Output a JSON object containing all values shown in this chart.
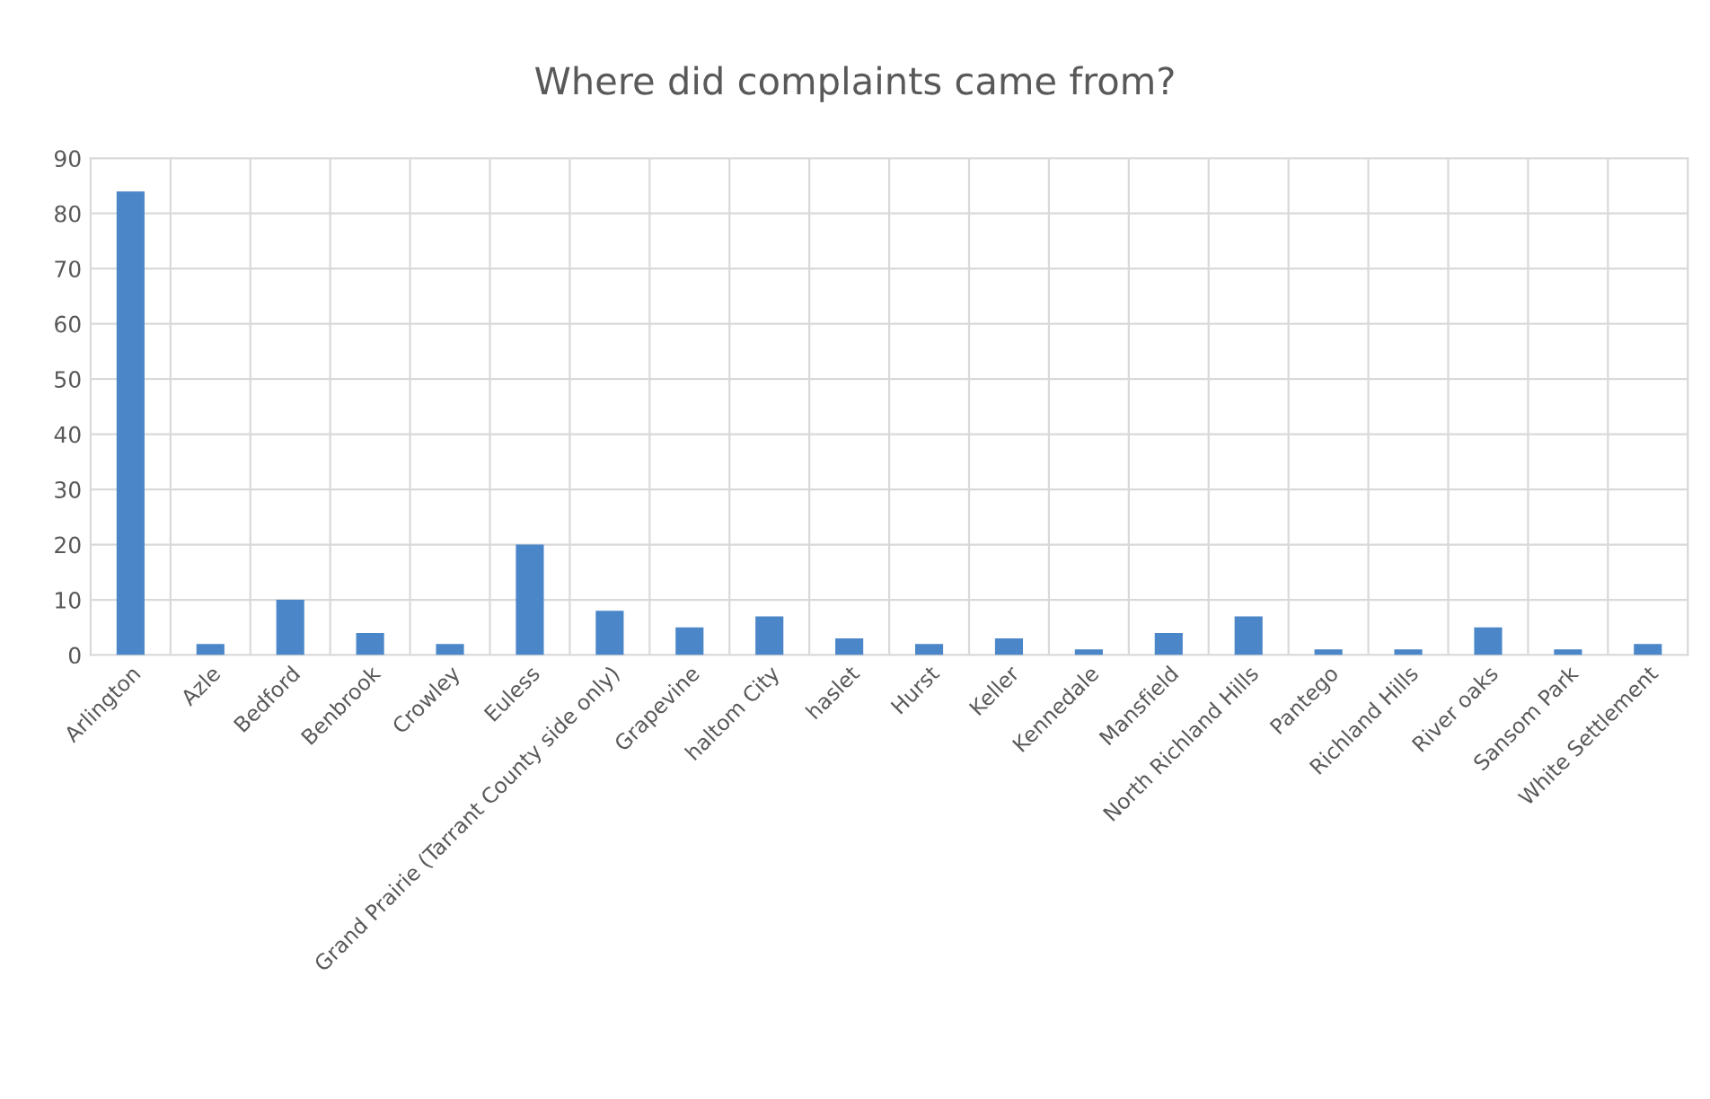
{
  "chart_data": {
    "type": "bar",
    "title": "Where did complaints came from?",
    "categories": [
      "Arlington",
      "Azle",
      "Bedford",
      "Benbrook",
      "Crowley",
      "Euless",
      "Grand Prairie (Tarrant County side only)",
      "Grapevine",
      "haltom City",
      "haslet",
      "Hurst",
      "Keller",
      "Kennedale",
      "Mansfield",
      "North Richland Hills",
      "Pantego",
      "Richland Hills",
      "River oaks",
      "Sansom Park",
      "White Settlement"
    ],
    "values": [
      84,
      2,
      10,
      4,
      2,
      20,
      8,
      5,
      7,
      3,
      2,
      3,
      1,
      4,
      7,
      1,
      1,
      5,
      1,
      2
    ],
    "color": "#4a86c8",
    "ylim": [
      0,
      90
    ],
    "yticks": [
      0,
      10,
      20,
      30,
      40,
      50,
      60,
      70,
      80,
      90
    ],
    "grid": true
  }
}
